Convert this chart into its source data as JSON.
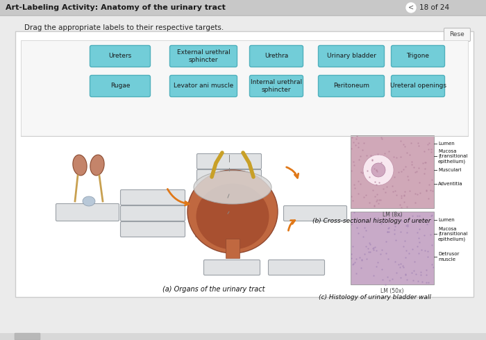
{
  "title": "Art-Labeling Activity: Anatomy of the urinary tract",
  "page_info": "18 of 24",
  "instruction": "Drag the appropriate labels to their respective targets.",
  "reset_btn": "Rese",
  "header_bg": "#c8c8c8",
  "main_bg": "#e8e8e8",
  "outer_panel_bg": "#ffffff",
  "label_panel_bg": "#f0f0f0",
  "label_bg": "#72cdd8",
  "label_border": "#50b0bc",
  "box_bg": "#e0e2e4",
  "box_border": "#9aa0a6",
  "labels_row1": [
    "Ureters",
    "External urethral\nsphincter",
    "Urethra",
    "Urinary bladder",
    "Trigone"
  ],
  "labels_row2": [
    "Rugae",
    "Levator ani muscle",
    "Internal urethral\nsphincter",
    "Peritoneum",
    "Ureteral openings"
  ],
  "caption_a": "(a) Organs of the urinary tract",
  "caption_b": "(b) Cross-sectional histology of ureter",
  "caption_c": "(c) Histology of urinary bladder wall",
  "lm_label_b": "LM (8x)",
  "lm_label_c": "LM (50x)",
  "side_labels_b": [
    "Lumen",
    "Mucosa\n(transitional\nepithelium)",
    "Musculari",
    "Adventitia"
  ],
  "side_labels_c": [
    "Lumen",
    "Mucosa\n(transitional\nepithelium)",
    "Detrusor\nmuscle"
  ]
}
